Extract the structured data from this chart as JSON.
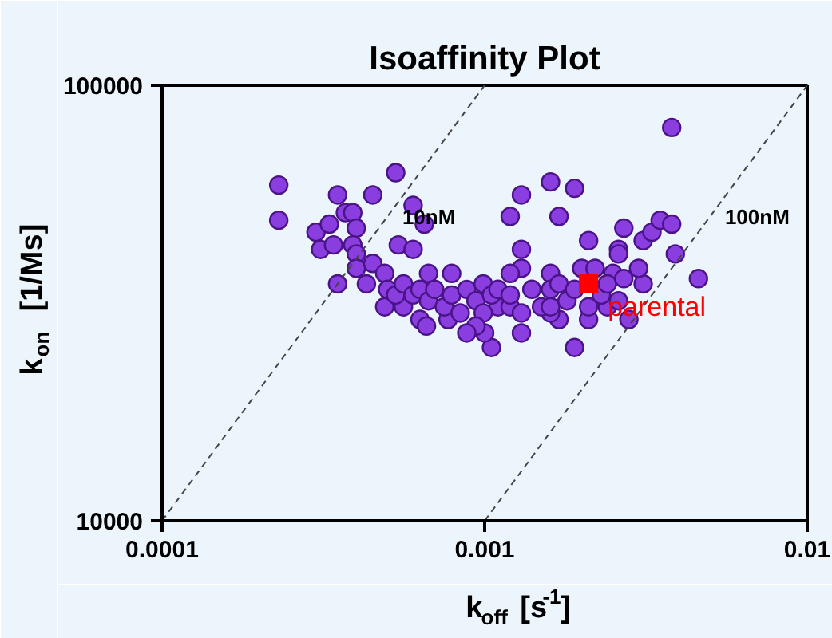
{
  "chart_data": {
    "type": "scatter",
    "title": "Isoaffinity Plot",
    "xlabel": "k$_{off}$ [s$^{-1}$]",
    "ylabel": "k$_{on}$ [1/Ms]",
    "log": "xy",
    "xlim": [
      0.0001,
      0.01
    ],
    "ylim": [
      10000,
      100000
    ],
    "xticks": [
      0.0001,
      0.001,
      0.01
    ],
    "yticks": [
      10000,
      100000
    ],
    "marker": "circle",
    "series": [
      {
        "color": "#8a3ee0",
        "x": [
          0.00023,
          0.00023,
          0.00035,
          0.00053,
          0.00045,
          0.0006,
          0.00065,
          0.00054,
          0.0006,
          0.0003,
          0.00031,
          0.00033,
          0.00034,
          0.00037,
          0.00039,
          0.0004,
          0.00039,
          0.0004,
          0.0004,
          0.00035,
          0.00045,
          0.00049,
          0.00043,
          0.00049,
          0.00067,
          0.00056,
          0.00063,
          0.00066,
          0.00077,
          0.00105,
          0.001,
          0.0013,
          0.0013,
          0.0012,
          0.0038,
          0.0016,
          0.0019,
          0.0017,
          0.0021,
          0.0027,
          0.0026,
          0.0031,
          0.0033,
          0.0035,
          0.0038,
          0.0039,
          0.0046,
          0.0028,
          0.0019,
          0.0011,
          0.0031,
          0.003,
          0.0026,
          0.0024,
          0.0021,
          0.0017,
          0.0016,
          0.0013,
          0.0013,
          0.0016,
          0.002,
          0.0022,
          0.0025,
          0.0005,
          0.00053,
          0.00056,
          0.0006,
          0.00063,
          0.00067,
          0.0007,
          0.00075,
          0.00079,
          0.00084,
          0.00088,
          0.00094,
          0.00099,
          0.00099,
          0.00105,
          0.0011,
          0.0012,
          0.0012,
          0.0013,
          0.0014,
          0.0015,
          0.0016,
          0.0016,
          0.0017,
          0.0018,
          0.0019,
          0.0021,
          0.0023,
          0.0024,
          0.0026,
          0.0027,
          0.00094,
          0.00079,
          0.0012,
          0.00088
        ],
        "values": [
          59000,
          49000,
          56000,
          63000,
          56000,
          53000,
          48000,
          43000,
          42000,
          46000,
          42000,
          48000,
          43000,
          51000,
          51000,
          47000,
          43000,
          41000,
          38000,
          35000,
          39000,
          37000,
          35000,
          31000,
          37000,
          31000,
          29000,
          28000,
          29000,
          25000,
          27000,
          27000,
          56000,
          50000,
          80000,
          60000,
          58000,
          50000,
          44000,
          47000,
          42000,
          44000,
          46000,
          49000,
          48000,
          41000,
          36000,
          29000,
          25000,
          31000,
          35000,
          38000,
          41000,
          31000,
          29000,
          29000,
          30000,
          38000,
          42000,
          37000,
          38000,
          38000,
          37000,
          34000,
          33000,
          35000,
          33000,
          34000,
          32000,
          34000,
          31000,
          33000,
          30000,
          34000,
          32000,
          30000,
          35000,
          33000,
          34000,
          31000,
          33000,
          30000,
          34000,
          31000,
          34000,
          31000,
          35000,
          32000,
          34000,
          31000,
          33000,
          35000,
          32000,
          36000,
          28000,
          37000,
          37000,
          27000
        ]
      },
      {
        "type": "scatter",
        "name": "parental",
        "marker": "square",
        "color": "#ff0000",
        "x": [
          0.0021
        ],
        "values": [
          35000
        ]
      },
      {
        "type": "line",
        "name": "10nM",
        "marker": "none",
        "line_style": "dashed",
        "color": "#444444",
        "x": [
          0.0001,
          0.001
        ],
        "values": [
          10000,
          100000
        ]
      },
      {
        "type": "line",
        "name": "100nM",
        "marker": "none",
        "line_style": "dashed",
        "color": "#444444",
        "x": [
          0.001,
          0.01
        ],
        "values": [
          10000,
          100000
        ]
      }
    ]
  }
}
